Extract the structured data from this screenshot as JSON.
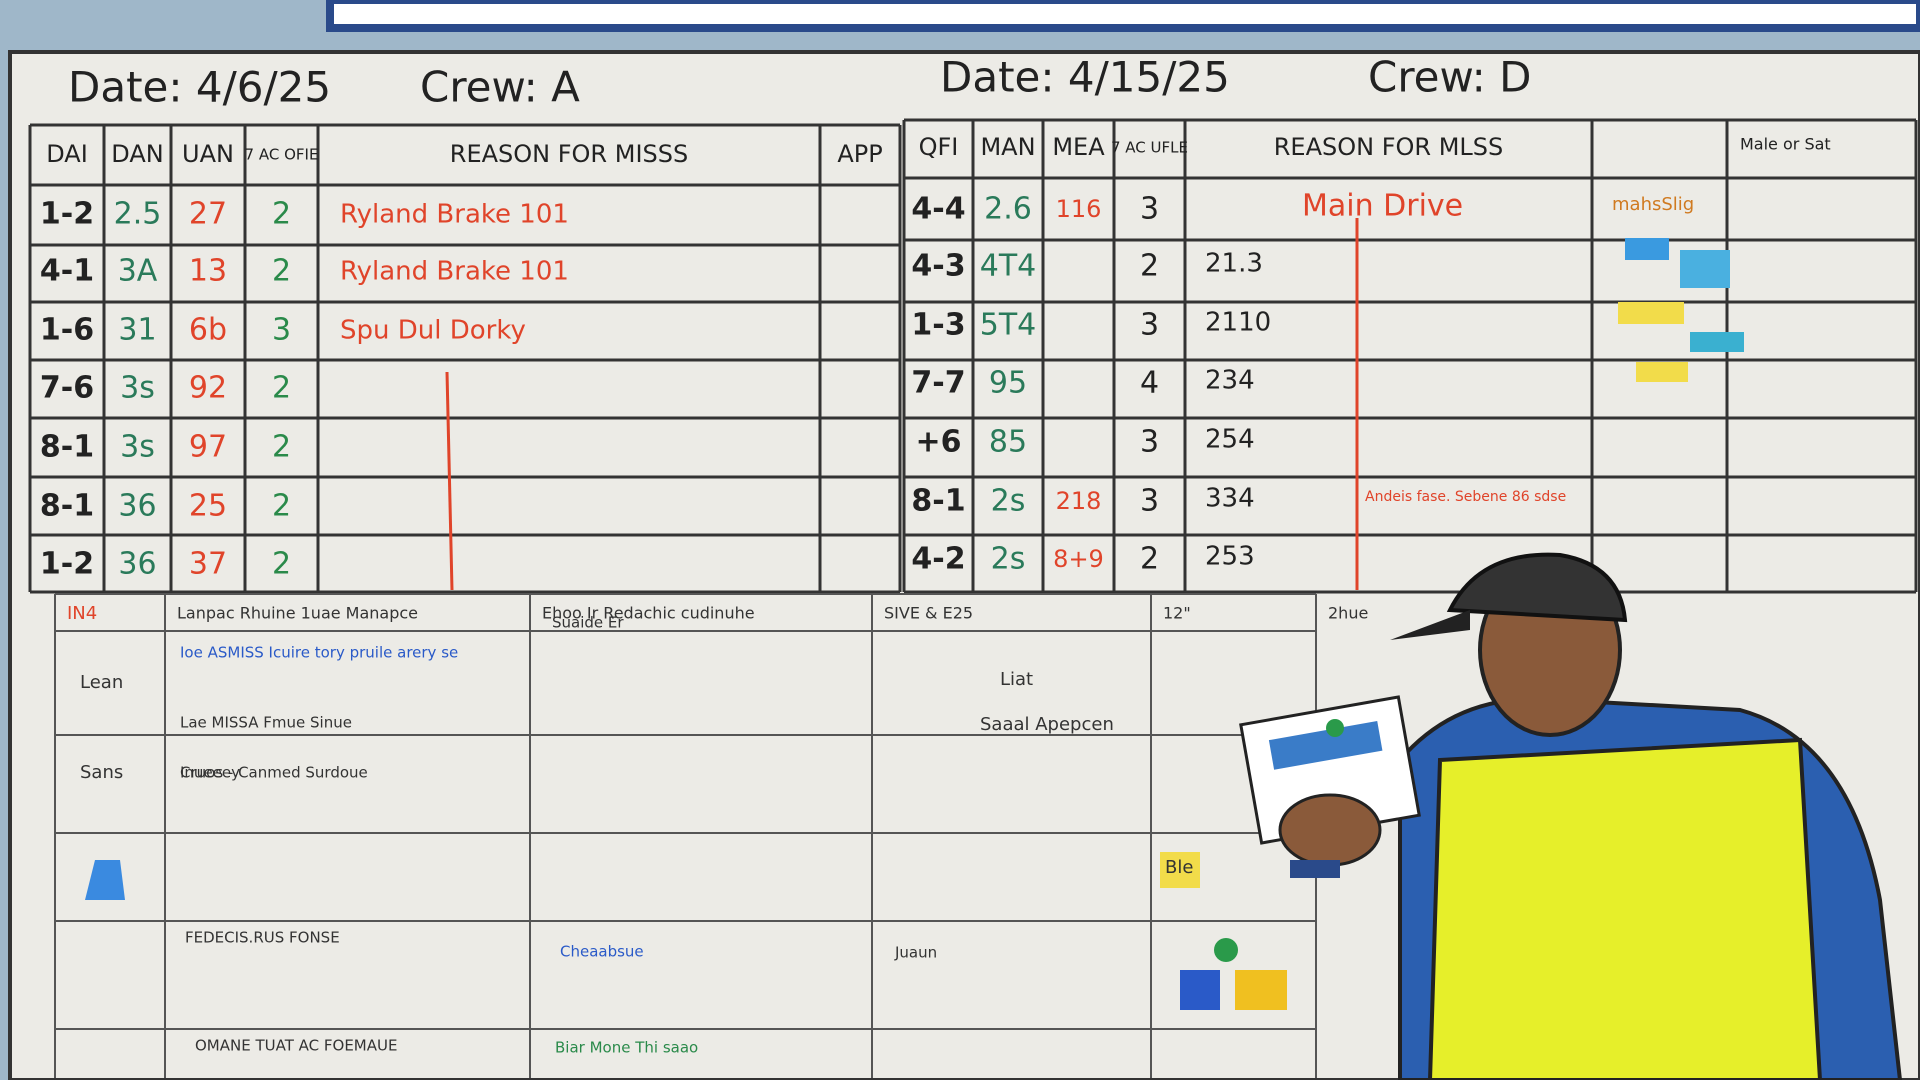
{
  "left_board": {
    "date": "Date: 4/6/25",
    "crew": "Crew: A",
    "headers": [
      "DAI",
      "DAN",
      "UAN",
      "7 AC OFIE",
      "REASON FOR MISSS",
      "APP"
    ],
    "rows": [
      {
        "cells": [
          "1-2",
          "2.5",
          "27",
          "2"
        ],
        "reason": "Ryland Brake 101"
      },
      {
        "cells": [
          "4-1",
          "3A",
          "13",
          "2"
        ],
        "reason": "Ryland Brake 101"
      },
      {
        "cells": [
          "1-6",
          "31",
          "6b",
          "3"
        ],
        "reason": "Spu Dul Dorky"
      },
      {
        "cells": [
          "7-6",
          "3s",
          "92",
          "2"
        ]
      },
      {
        "cells": [
          "8-1",
          "3s",
          "97",
          "2"
        ]
      },
      {
        "cells": [
          "8-1",
          "36",
          "25",
          "2"
        ]
      },
      {
        "cells": [
          "1-2",
          "36",
          "37",
          "2"
        ]
      }
    ]
  },
  "right_board": {
    "date": "Date: 4/15/25",
    "crew": "Crew: D",
    "headers": [
      "QFI",
      "MAN",
      "MEA",
      "7 AC UFLE",
      "REASON FOR MLSS"
    ],
    "side_header": "Male or Sat",
    "side_note": "mahsSlig",
    "rows": [
      {
        "qfi": "4-4",
        "man": "2.6",
        "mea": "116",
        "ac": "3",
        "reason": "Main Drive"
      },
      {
        "qfi": "4-3",
        "man": "4T4",
        "ac": "2",
        "reason": "21.3"
      },
      {
        "qfi": "1-3",
        "man": "5T4",
        "ac": "3",
        "reason": "2110"
      },
      {
        "qfi": "7-7",
        "man": "95",
        "ac": "4",
        "reason": "234"
      },
      {
        "qfi": "+6",
        "man": "85",
        "ac": "3",
        "reason": "254"
      },
      {
        "qfi": "8-1",
        "man": "2s",
        "mea": "218",
        "ac": "3",
        "reason": "334",
        "note": "Andeis fase. Sebene 86 sdse"
      },
      {
        "qfi": "4-2",
        "man": "2s",
        "mea": "8+9",
        "ac": "2",
        "reason": "253"
      }
    ]
  },
  "bottom_grid": {
    "headers": [
      "IN4",
      "Lanpac Rhuine 1uae Manapce",
      "Ehoo Ir Redachic cudinuhe",
      "SIVE & E25",
      "12\"",
      "2hue"
    ],
    "rows": [
      {
        "label": "Lean",
        "notes": [
          "Ioe ASMISS Icuire tory pruile arery se",
          "Lae MISSA Fmue Sinue",
          "Suaide Er"
        ]
      },
      {
        "label": "Sans",
        "notes": [
          "Cruos - Canmed Surdoue",
          "Inueeey"
        ]
      }
    ],
    "side_notes": [
      "Liat",
      "Saaal Apepcen",
      "Ble"
    ],
    "footer_notes": [
      "FEDECIS.RUS FONSE",
      "Cheaabsue",
      "Juaun",
      "OMANE TUAT AC FOEMAUE",
      "Biar Mone Thi saao"
    ]
  }
}
